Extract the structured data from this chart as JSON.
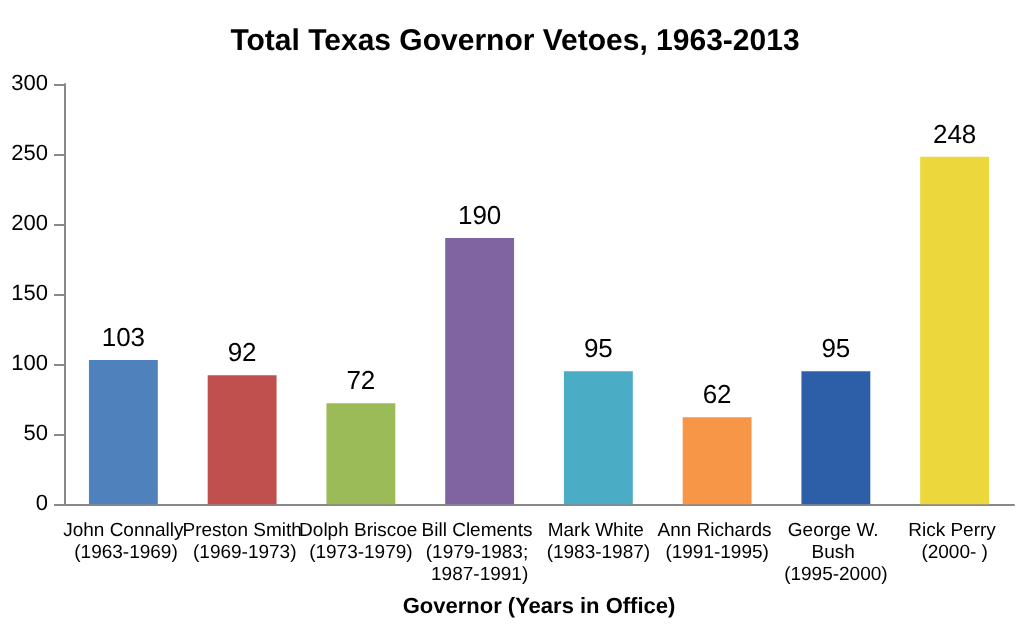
{
  "chart_data": {
    "type": "bar",
    "title": "Total Texas Governor Vetoes, 1963-2013",
    "xlabel": "Governor (Years in Office)",
    "categories": [
      "John Connally (1963-1969)",
      "Preston Smith (1969-1973)",
      "Dolph Briscoe (1973-1979)",
      "Bill Clements (1979-1983; 1987-1991)",
      "Mark White (1983-1987)",
      "Ann Richards (1991-1995)",
      "George W. Bush (1995-2000)",
      "Rick Perry (2000- )"
    ],
    "values": [
      103,
      92,
      72,
      190,
      95,
      62,
      95,
      248
    ],
    "colors": [
      "#4f81bd",
      "#c0504d",
      "#9bbb59",
      "#8064a2",
      "#4bacc6",
      "#f79646",
      "#2c5fa8",
      "#ecd83c"
    ],
    "ylim": [
      0,
      300
    ],
    "yticks": [
      0,
      50,
      100,
      150,
      200,
      250,
      300
    ],
    "grid": false,
    "data_labels": true
  }
}
